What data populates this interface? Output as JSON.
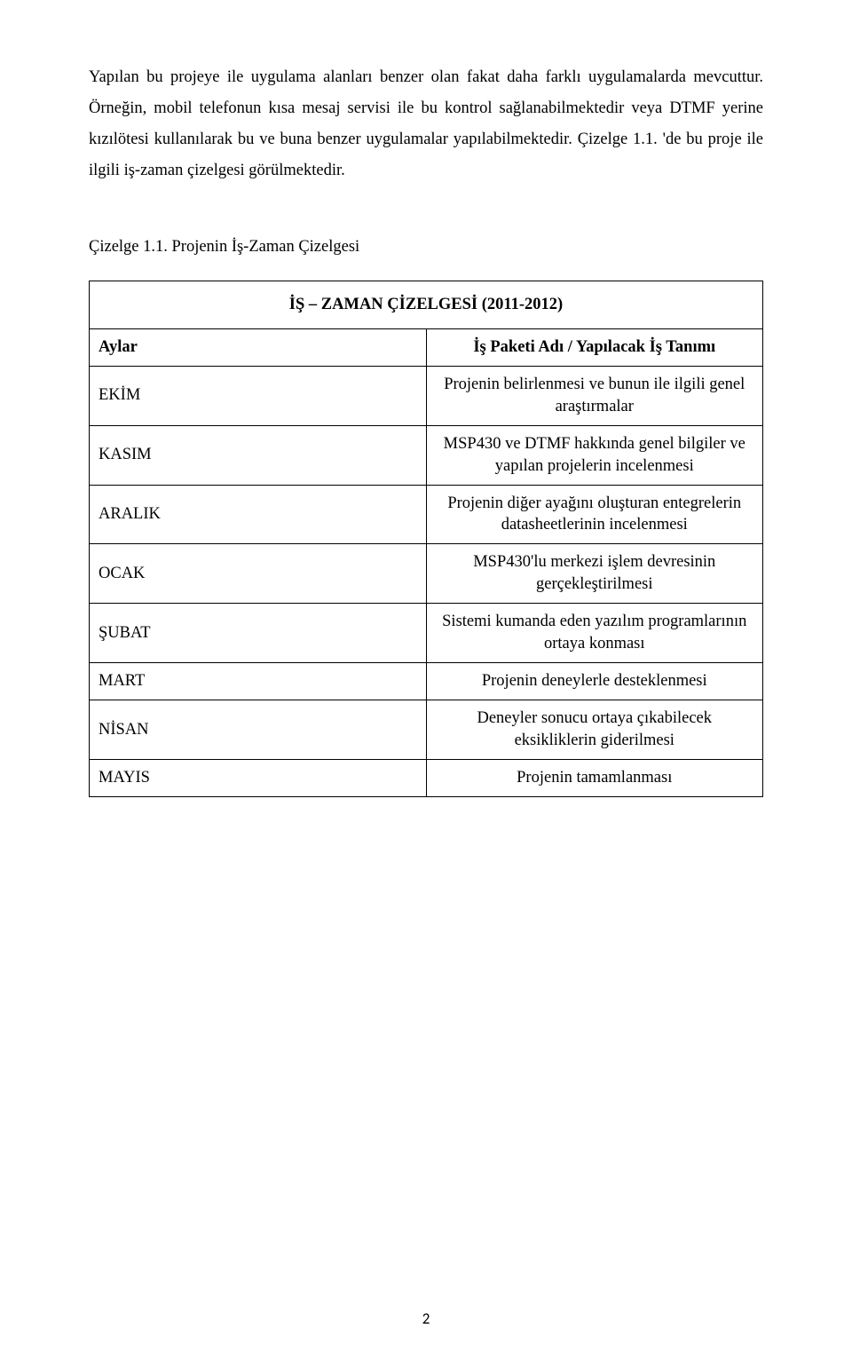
{
  "paragraphs": {
    "p1": "Yapılan bu projeye ile uygulama alanları benzer olan fakat daha farklı uygulamalarda mevcuttur. Örneğin, mobil telefonun kısa mesaj servisi ile bu kontrol sağlanabilmektedir veya DTMF yerine kızılötesi kullanılarak bu ve buna benzer uygulamalar yapılabilmektedir. Çizelge 1.1. 'de bu proje ile ilgili iş-zaman çizelgesi görülmektedir."
  },
  "caption": "Çizelge 1.1. Projenin İş-Zaman Çizelgesi",
  "table": {
    "title": "İŞ – ZAMAN ÇİZELGESİ (2011-2012)",
    "header_left": "Aylar",
    "header_right": "İş Paketi Adı / Yapılacak İş Tanımı",
    "rows": [
      {
        "month": "EKİM",
        "task": "Projenin belirlenmesi ve bunun ile ilgili genel araştırmalar"
      },
      {
        "month": "KASIM",
        "task": "MSP430 ve DTMF hakkında genel bilgiler ve yapılan projelerin incelenmesi"
      },
      {
        "month": "ARALIK",
        "task": "Projenin diğer ayağını oluşturan entegrelerin datasheetlerinin incelenmesi"
      },
      {
        "month": "OCAK",
        "task": "MSP430'lu merkezi işlem devresinin gerçekleştirilmesi"
      },
      {
        "month": "ŞUBAT",
        "task": "Sistemi kumanda eden yazılım programlarının ortaya konması"
      },
      {
        "month": "MART",
        "task": "Projenin deneylerle desteklenmesi"
      },
      {
        "month": "NİSAN",
        "task": "Deneyler sonucu ortaya çıkabilecek eksikliklerin giderilmesi"
      },
      {
        "month": "MAYIS",
        "task": "Projenin tamamlanması"
      }
    ]
  },
  "page_number": "2"
}
